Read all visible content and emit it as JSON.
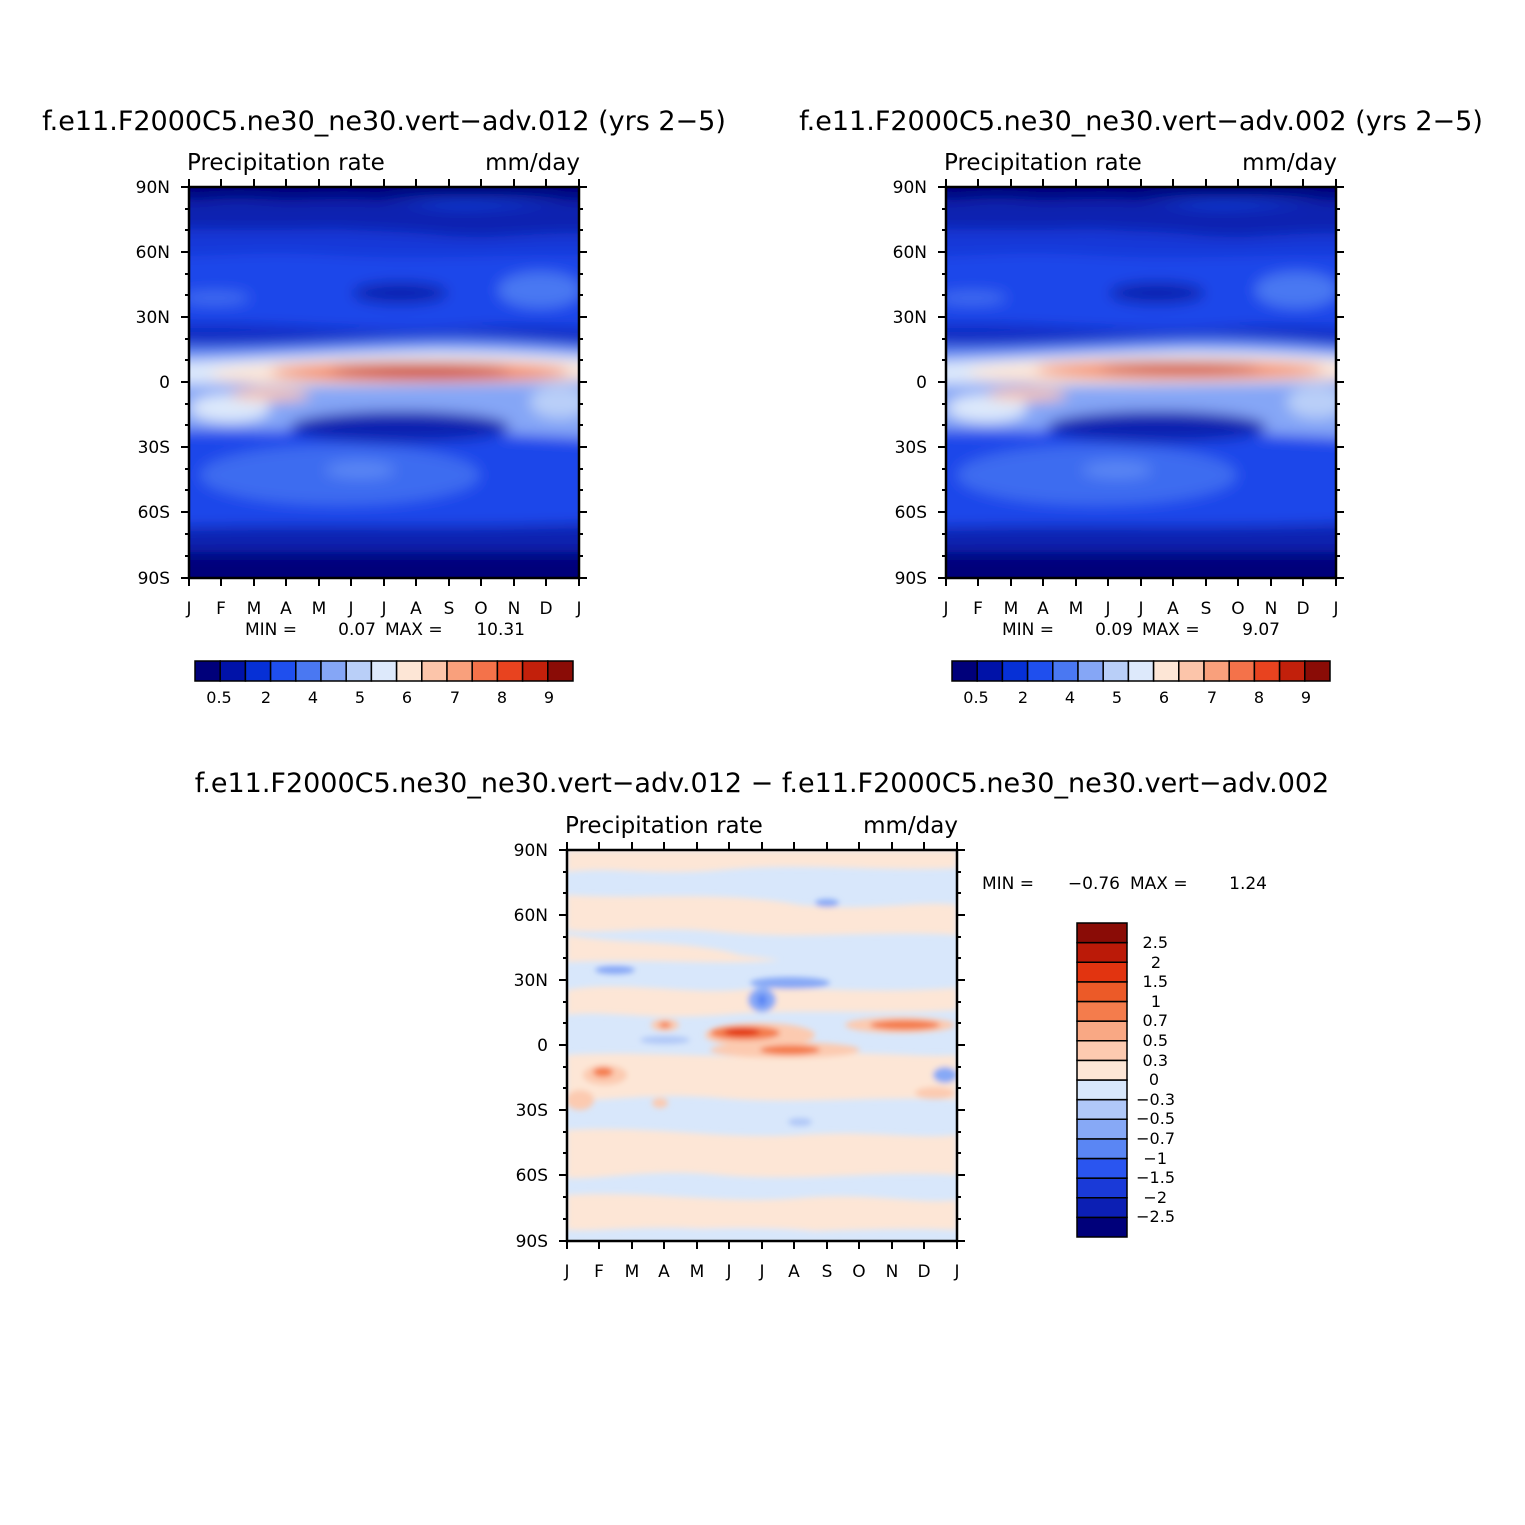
{
  "chart_data": [
    {
      "type": "heatmap",
      "title": "f.e11.F2000C5.ne30_ne30.vert−adv.012 (yrs 2−5)",
      "subtitle_left": "Precipitation rate",
      "subtitle_right": "mm/day",
      "x_tick_labels": [
        "J",
        "F",
        "M",
        "A",
        "M",
        "J",
        "J",
        "A",
        "S",
        "O",
        "N",
        "D",
        "J"
      ],
      "y_tick_labels": [
        "90N",
        "60N",
        "30N",
        "0",
        "30S",
        "60S",
        "90S"
      ],
      "ylim": [
        -90,
        90
      ],
      "stats": {
        "min_label": "MIN =",
        "min": "0.07",
        "max_label": "MAX =",
        "max": "10.31"
      },
      "colorbar": {
        "orientation": "horizontal",
        "colors": [
          "#00007a",
          "#0012a8",
          "#0630d6",
          "#1f4fee",
          "#4a78f2",
          "#85a6f6",
          "#b9cff8",
          "#dde9fb",
          "#fde6d6",
          "#fcc5aa",
          "#f9a07c",
          "#f4724a",
          "#e8431f",
          "#c2200b",
          "#8a0c06"
        ],
        "labels": [
          "0.5",
          "2",
          "4",
          "5",
          "6",
          "7",
          "8",
          "9"
        ]
      }
    },
    {
      "type": "heatmap",
      "title": "f.e11.F2000C5.ne30_ne30.vert−adv.002 (yrs 2−5)",
      "subtitle_left": "Precipitation rate",
      "subtitle_right": "mm/day",
      "x_tick_labels": [
        "J",
        "F",
        "M",
        "A",
        "M",
        "J",
        "J",
        "A",
        "S",
        "O",
        "N",
        "D",
        "J"
      ],
      "y_tick_labels": [
        "90N",
        "60N",
        "30N",
        "0",
        "30S",
        "60S",
        "90S"
      ],
      "ylim": [
        -90,
        90
      ],
      "stats": {
        "min_label": "MIN =",
        "min": "0.09",
        "max_label": "MAX =",
        "max": "9.07"
      },
      "colorbar": {
        "orientation": "horizontal",
        "colors": [
          "#00007a",
          "#0012a8",
          "#0630d6",
          "#1f4fee",
          "#4a78f2",
          "#85a6f6",
          "#b9cff8",
          "#dde9fb",
          "#fde6d6",
          "#fcc5aa",
          "#f9a07c",
          "#f4724a",
          "#e8431f",
          "#c2200b",
          "#8a0c06"
        ],
        "labels": [
          "0.5",
          "2",
          "4",
          "5",
          "6",
          "7",
          "8",
          "9"
        ]
      }
    },
    {
      "type": "heatmap",
      "title": "f.e11.F2000C5.ne30_ne30.vert−adv.012 − f.e11.F2000C5.ne30_ne30.vert−adv.002",
      "subtitle_left": "Precipitation rate",
      "subtitle_right": "mm/day",
      "x_tick_labels": [
        "J",
        "F",
        "M",
        "A",
        "M",
        "J",
        "J",
        "A",
        "S",
        "O",
        "N",
        "D",
        "J"
      ],
      "y_tick_labels": [
        "90N",
        "60N",
        "30N",
        "0",
        "30S",
        "60S",
        "90S"
      ],
      "ylim": [
        -90,
        90
      ],
      "stats": {
        "min_label": "MIN =",
        "min": "−0.76",
        "max_label": "MAX =",
        "max": "1.24"
      },
      "colorbar": {
        "orientation": "vertical",
        "colors": [
          "#00007a",
          "#0c1fb4",
          "#1a3ad8",
          "#2a55f0",
          "#5a86f4",
          "#87a9f6",
          "#b0c8f8",
          "#d8e7fb",
          "#fde6d6",
          "#fccab0",
          "#f9a884",
          "#f47c4c",
          "#ec5a28",
          "#e23410",
          "#bb1a08",
          "#8a0c06"
        ],
        "labels": [
          "−2.5",
          "−2",
          "−1.5",
          "−1",
          "−0.7",
          "−0.5",
          "−0.3",
          "0",
          "0.3",
          "0.5",
          "0.7",
          "1",
          "1.5",
          "2",
          "2.5"
        ]
      }
    }
  ]
}
